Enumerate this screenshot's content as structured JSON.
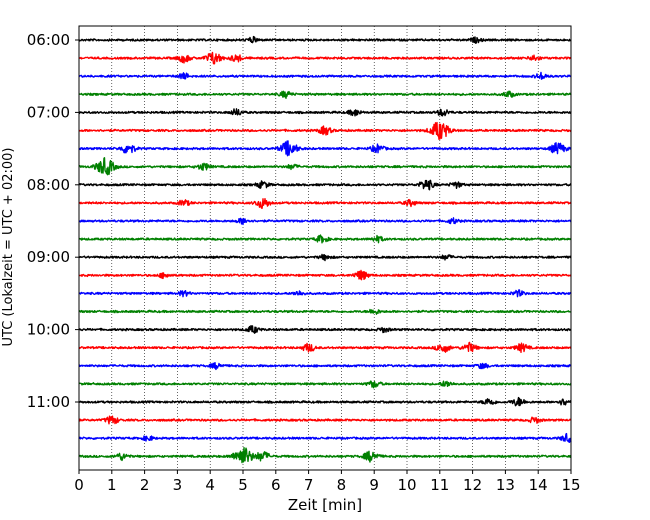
{
  "chart_data": {
    "type": "line",
    "title": "",
    "xlabel": "Zeit  [min]",
    "ylabel": "UTC (Lokalzeit = UTC + 02:00)",
    "xlim": [
      0,
      15
    ],
    "x_ticks": [
      0,
      1,
      2,
      3,
      4,
      5,
      6,
      7,
      8,
      9,
      10,
      11,
      12,
      13,
      14,
      15
    ],
    "y_tick_labels": [
      "06:00",
      "07:00",
      "08:00",
      "09:00",
      "10:00",
      "11:00"
    ],
    "y_tick_positions": [
      0,
      4,
      8,
      12,
      16,
      20
    ],
    "grid": "vertical dotted lines at each minute",
    "trace_interval_minutes": 15,
    "trace_count": 24,
    "color_cycle": [
      "#000000",
      "#ff0000",
      "#0000ff",
      "#008000"
    ],
    "series": [
      {
        "start": "06:00",
        "color": "#000000",
        "events": [
          [
            5.3,
            0.22
          ],
          [
            12.1,
            0.2
          ]
        ]
      },
      {
        "start": "06:15",
        "color": "#ff0000",
        "events": [
          [
            3.2,
            0.35
          ],
          [
            4.1,
            0.55
          ],
          [
            4.8,
            0.3
          ],
          [
            13.9,
            0.25
          ]
        ]
      },
      {
        "start": "06:30",
        "color": "#0000ff",
        "events": [
          [
            3.2,
            0.25
          ],
          [
            14.1,
            0.28
          ]
        ]
      },
      {
        "start": "06:45",
        "color": "#008000",
        "events": [
          [
            6.3,
            0.28
          ],
          [
            13.1,
            0.25
          ]
        ]
      },
      {
        "start": "07:00",
        "color": "#000000",
        "events": [
          [
            4.8,
            0.28
          ],
          [
            8.4,
            0.28
          ],
          [
            11.1,
            0.3
          ]
        ]
      },
      {
        "start": "07:15",
        "color": "#ff0000",
        "events": [
          [
            7.5,
            0.35
          ],
          [
            11.0,
            0.8
          ]
        ]
      },
      {
        "start": "07:30",
        "color": "#0000ff",
        "events": [
          [
            1.5,
            0.45
          ],
          [
            6.4,
            0.65
          ],
          [
            9.1,
            0.35
          ],
          [
            14.6,
            0.5
          ]
        ]
      },
      {
        "start": "07:45",
        "color": "#008000",
        "events": [
          [
            0.8,
            0.75
          ],
          [
            3.8,
            0.3
          ],
          [
            6.5,
            0.2
          ]
        ]
      },
      {
        "start": "08:00",
        "color": "#000000",
        "events": [
          [
            5.6,
            0.3
          ],
          [
            10.6,
            0.45
          ],
          [
            11.5,
            0.25
          ]
        ]
      },
      {
        "start": "08:15",
        "color": "#ff0000",
        "events": [
          [
            3.2,
            0.25
          ],
          [
            5.6,
            0.45
          ],
          [
            10.1,
            0.25
          ]
        ]
      },
      {
        "start": "08:30",
        "color": "#0000ff",
        "events": [
          [
            5.0,
            0.25
          ],
          [
            11.4,
            0.22
          ]
        ]
      },
      {
        "start": "08:45",
        "color": "#008000",
        "events": [
          [
            7.4,
            0.3
          ],
          [
            9.1,
            0.25
          ]
        ]
      },
      {
        "start": "09:00",
        "color": "#000000",
        "events": [
          [
            7.5,
            0.22
          ],
          [
            11.2,
            0.2
          ]
        ]
      },
      {
        "start": "09:15",
        "color": "#ff0000",
        "events": [
          [
            2.6,
            0.22
          ],
          [
            8.6,
            0.4
          ]
        ]
      },
      {
        "start": "09:30",
        "color": "#0000ff",
        "events": [
          [
            3.2,
            0.22
          ],
          [
            6.7,
            0.2
          ],
          [
            13.4,
            0.25
          ]
        ]
      },
      {
        "start": "09:45",
        "color": "#008000",
        "events": [
          [
            9.0,
            0.22
          ]
        ]
      },
      {
        "start": "10:00",
        "color": "#000000",
        "events": [
          [
            5.3,
            0.3
          ],
          [
            9.3,
            0.2
          ]
        ]
      },
      {
        "start": "10:15",
        "color": "#ff0000",
        "events": [
          [
            7.0,
            0.35
          ],
          [
            11.1,
            0.4
          ],
          [
            11.9,
            0.4
          ],
          [
            13.5,
            0.35
          ]
        ]
      },
      {
        "start": "10:30",
        "color": "#0000ff",
        "events": [
          [
            4.2,
            0.25
          ],
          [
            12.3,
            0.22
          ]
        ]
      },
      {
        "start": "10:45",
        "color": "#008000",
        "events": [
          [
            9.0,
            0.3
          ],
          [
            11.2,
            0.25
          ]
        ]
      },
      {
        "start": "11:00",
        "color": "#000000",
        "events": [
          [
            12.5,
            0.3
          ],
          [
            13.4,
            0.35
          ],
          [
            14.8,
            0.28
          ]
        ]
      },
      {
        "start": "11:15",
        "color": "#ff0000",
        "events": [
          [
            1.0,
            0.35
          ],
          [
            13.9,
            0.25
          ]
        ]
      },
      {
        "start": "11:30",
        "color": "#0000ff",
        "events": [
          [
            2.1,
            0.2
          ],
          [
            14.9,
            0.35
          ]
        ]
      },
      {
        "start": "11:45",
        "color": "#008000",
        "events": [
          [
            1.3,
            0.3
          ],
          [
            5.0,
            0.8
          ],
          [
            5.6,
            0.4
          ],
          [
            8.9,
            0.45
          ]
        ]
      }
    ]
  }
}
